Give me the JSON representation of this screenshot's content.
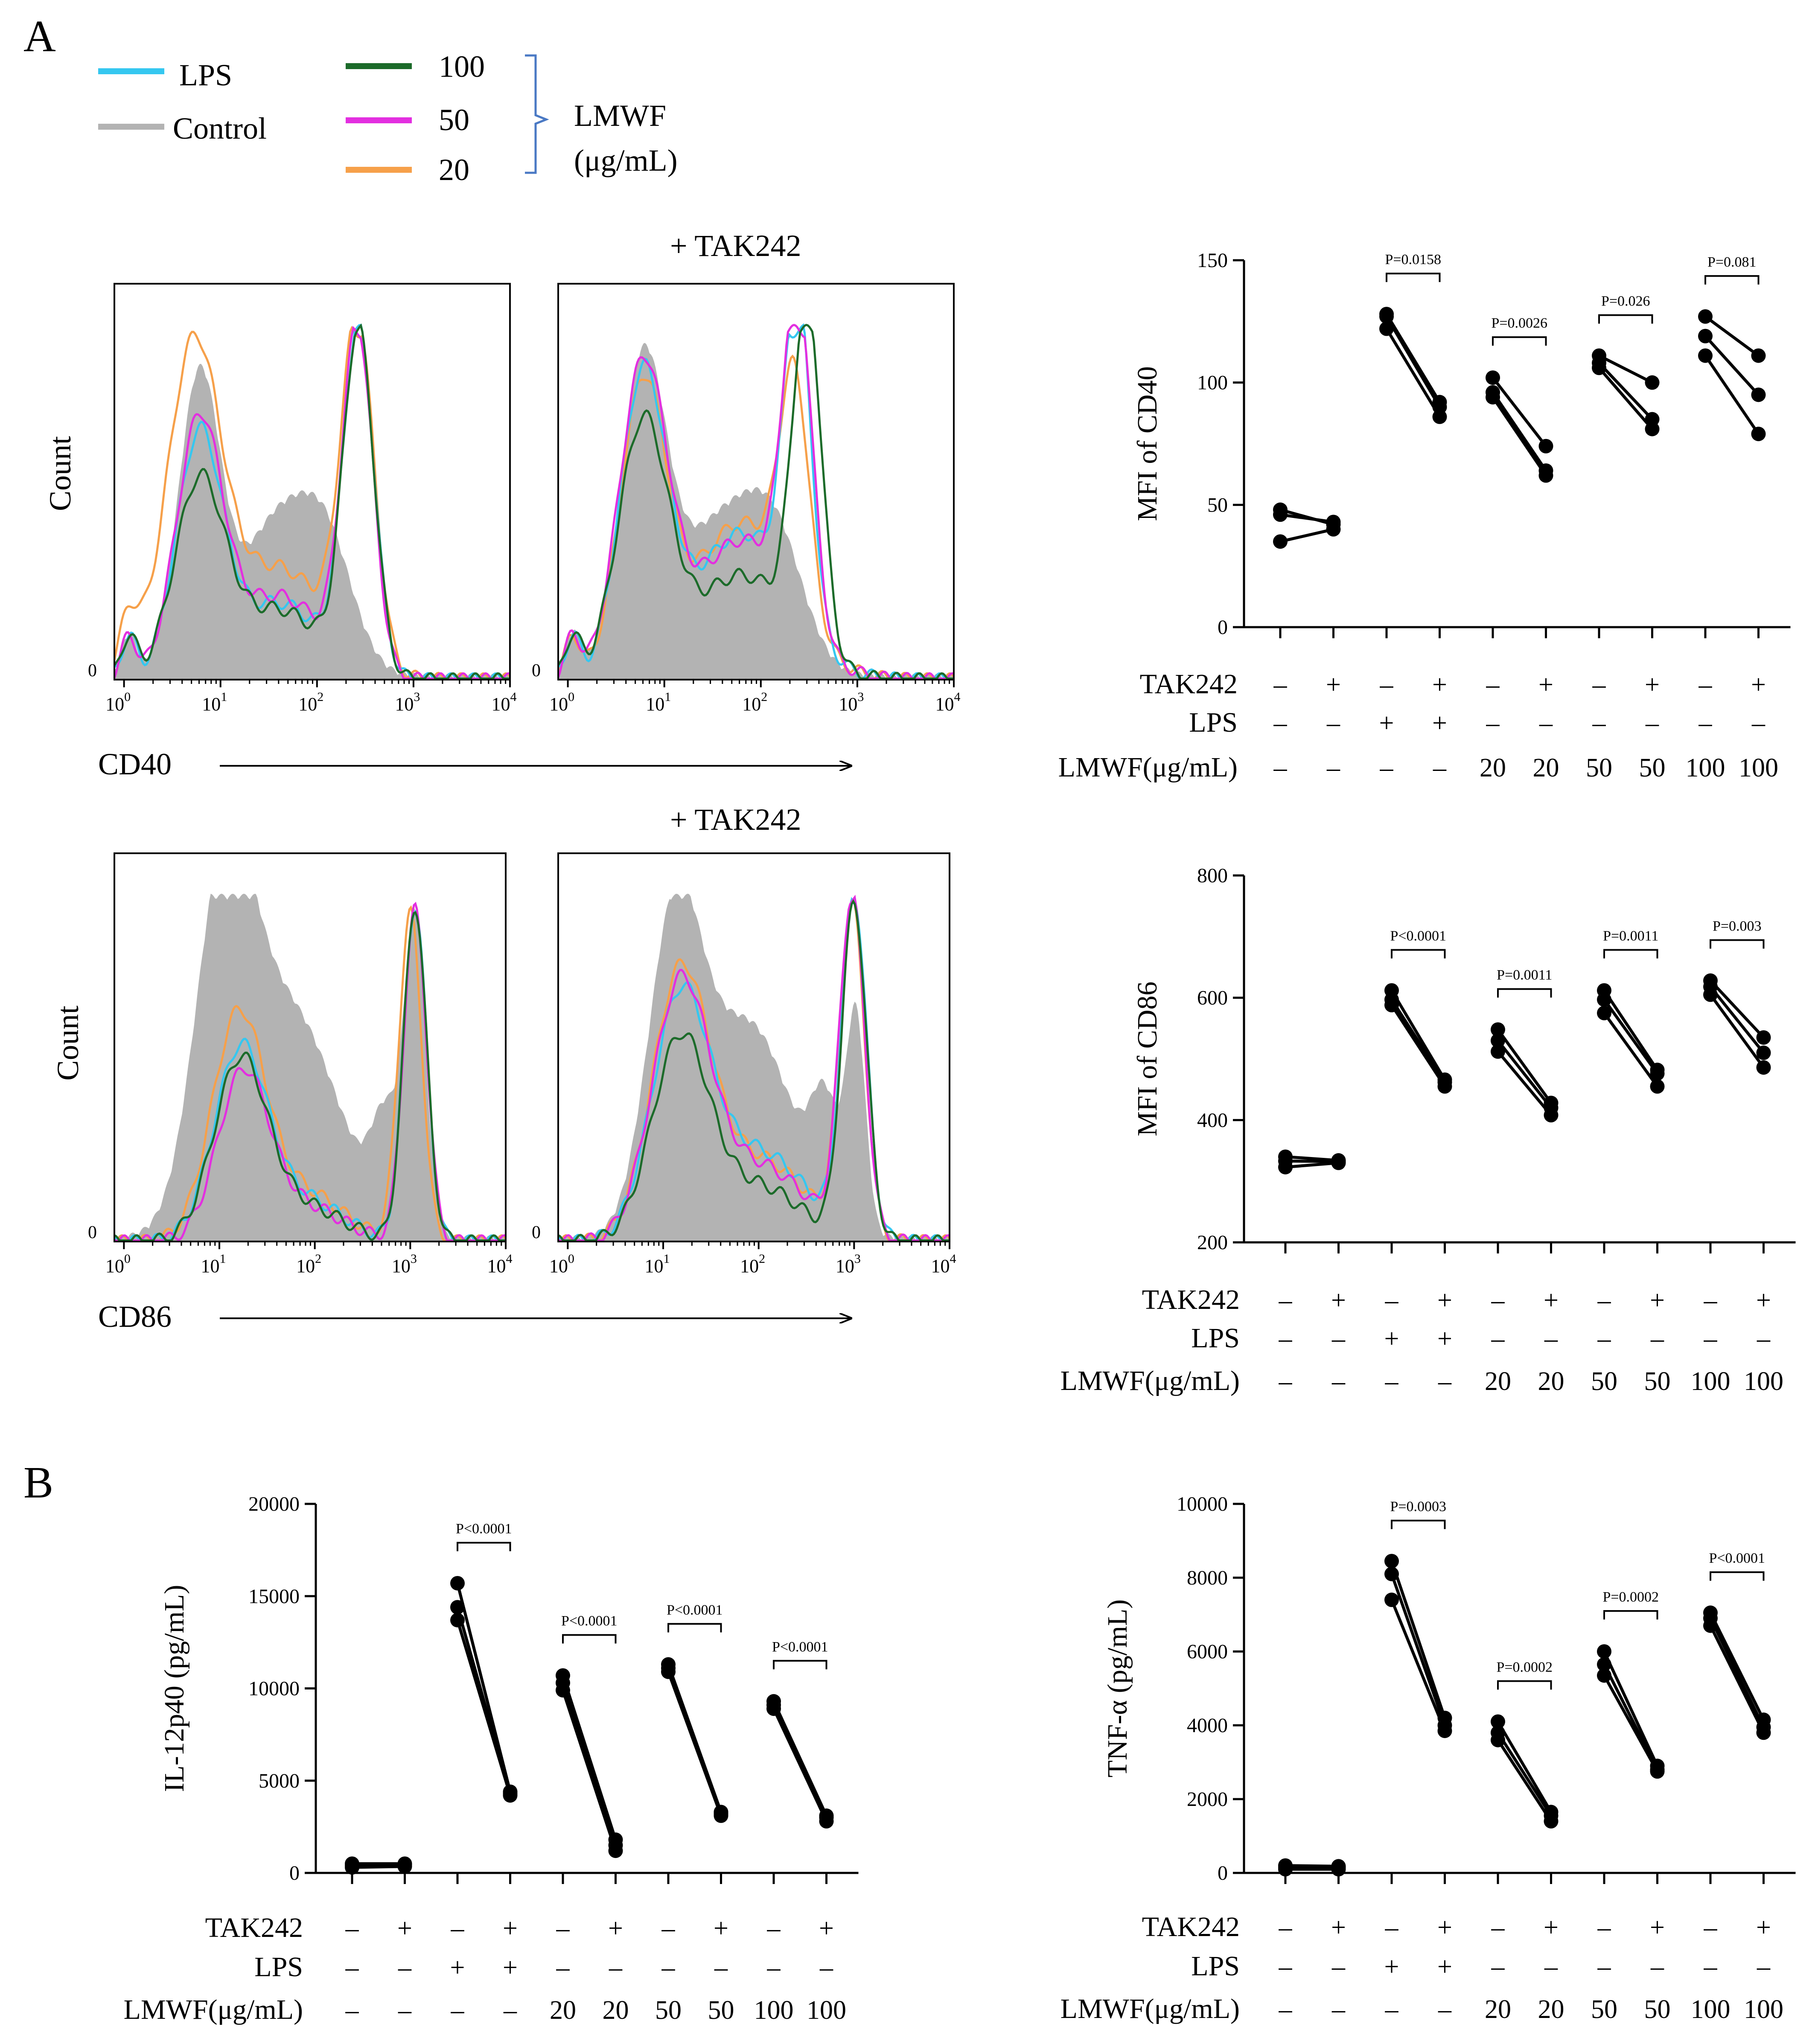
{
  "panel_labels": {
    "A": "A",
    "B": "B"
  },
  "legend": {
    "items": [
      {
        "label": "LPS",
        "color": "#35c7f0"
      },
      {
        "label": "Control",
        "color": "#b3b3b3"
      },
      {
        "label": "100",
        "color": "#1c6b2a"
      },
      {
        "label": "50",
        "color": "#e32fe0"
      },
      {
        "label": "20",
        "color": "#f6a04a"
      }
    ],
    "group_label_1": "LMWF",
    "group_label_2": "(μg/mL)"
  },
  "histograms": {
    "tak242_title": "+ TAK242",
    "count_label": "Count",
    "zero_label": "0",
    "tick_labels": [
      "10^0",
      "10^1",
      "10^2",
      "10^3",
      "10^4"
    ],
    "tick_mantissa": "10",
    "tick_exponents": [
      "0",
      "1",
      "2",
      "3",
      "4"
    ],
    "marker_cd40": "CD40",
    "marker_cd86": "CD86"
  },
  "conditions": {
    "row_labels": [
      "TAK242",
      "LPS",
      "LMWF(μg/mL)"
    ],
    "tak242": [
      "–",
      "+",
      "–",
      "+",
      "–",
      "+",
      "–",
      "+",
      "–",
      "+"
    ],
    "lps": [
      "–",
      "–",
      "+",
      "+",
      "–",
      "–",
      "–",
      "–",
      "–",
      "–"
    ],
    "lmwf": [
      "–",
      "–",
      "–",
      "–",
      "20",
      "20",
      "50",
      "50",
      "100",
      "100"
    ]
  },
  "chart_data": [
    {
      "type": "paired-scatter",
      "id": "cd40",
      "title": "",
      "ylabel": "MFI of CD40",
      "ylim": [
        0,
        150
      ],
      "yticks": [
        0,
        50,
        100,
        150
      ],
      "ytick_labels": [
        "0",
        "50",
        "100",
        "150"
      ],
      "pairs": [
        {
          "before": [
            35,
            46,
            48
          ],
          "after": [
            40,
            43,
            42
          ]
        },
        {
          "before": [
            122,
            127,
            128
          ],
          "after": [
            86,
            90,
            92
          ]
        },
        {
          "before": [
            94,
            96,
            102
          ],
          "after": [
            62,
            64,
            74
          ]
        },
        {
          "before": [
            106,
            108,
            111
          ],
          "after": [
            81,
            85,
            100
          ]
        },
        {
          "before": [
            111,
            119,
            127
          ],
          "after": [
            79,
            95,
            111
          ]
        }
      ],
      "p_values": [
        "",
        "P=0.0158",
        "P=0.0026",
        "P=0.026",
        "P=0.081"
      ]
    },
    {
      "type": "paired-scatter",
      "id": "cd86",
      "title": "",
      "ylabel": "MFI of CD86",
      "ylim": [
        200,
        800
      ],
      "yticks": [
        200,
        400,
        600,
        800
      ],
      "ytick_labels": [
        "200",
        "400",
        "600",
        "800"
      ],
      "pairs": [
        {
          "before": [
            323,
            333,
            340
          ],
          "after": [
            330,
            332,
            334
          ]
        },
        {
          "before": [
            588,
            597,
            612
          ],
          "after": [
            455,
            462,
            466
          ]
        },
        {
          "before": [
            512,
            530,
            548
          ],
          "after": [
            408,
            420,
            428
          ]
        },
        {
          "before": [
            575,
            597,
            612
          ],
          "after": [
            455,
            476,
            482
          ]
        },
        {
          "before": [
            605,
            618,
            628
          ],
          "after": [
            486,
            510,
            535
          ]
        }
      ],
      "p_values": [
        "",
        "P<0.0001",
        "P=0.0011",
        "P=0.0011",
        "P=0.003"
      ]
    },
    {
      "type": "paired-scatter",
      "id": "il12",
      "title": "",
      "ylabel": "IL-12p40 (pg/mL)",
      "ylim": [
        0,
        20000
      ],
      "yticks": [
        0,
        5000,
        10000,
        15000,
        20000
      ],
      "ytick_labels": [
        "0",
        "5000",
        "10000",
        "15000",
        "20000"
      ],
      "pairs": [
        {
          "before": [
            300,
            400,
            500
          ],
          "after": [
            350,
            450,
            500
          ]
        },
        {
          "before": [
            13700,
            14400,
            15700
          ],
          "after": [
            4200,
            4300,
            4400
          ]
        },
        {
          "before": [
            9900,
            10300,
            10700
          ],
          "after": [
            1200,
            1500,
            1800
          ]
        },
        {
          "before": [
            10900,
            11100,
            11300
          ],
          "after": [
            3100,
            3200,
            3300
          ]
        },
        {
          "before": [
            8900,
            9100,
            9300
          ],
          "after": [
            2800,
            3000,
            3100
          ]
        }
      ],
      "p_values": [
        "",
        "P<0.0001",
        "P<0.0001",
        "P<0.0001",
        "P<0.0001"
      ]
    },
    {
      "type": "paired-scatter",
      "id": "tnf",
      "title": "",
      "ylabel": "TNF-α (pg/mL)",
      "ylim": [
        0,
        10000
      ],
      "yticks": [
        0,
        2000,
        4000,
        6000,
        8000,
        10000
      ],
      "ytick_labels": [
        "0",
        "2000",
        "4000",
        "6000",
        "8000",
        "10000"
      ],
      "pairs": [
        {
          "before": [
            100,
            150,
            200
          ],
          "after": [
            100,
            150,
            180
          ]
        },
        {
          "before": [
            7400,
            8100,
            8450
          ],
          "after": [
            3850,
            4000,
            4200
          ]
        },
        {
          "before": [
            3600,
            3800,
            4100
          ],
          "after": [
            1400,
            1550,
            1650
          ]
        },
        {
          "before": [
            5350,
            5650,
            6000
          ],
          "after": [
            2750,
            2800,
            2900
          ]
        },
        {
          "before": [
            6700,
            6900,
            7050
          ],
          "after": [
            3800,
            3950,
            4150
          ]
        }
      ],
      "p_values": [
        "",
        "P=0.0003",
        "P=0.0002",
        "P=0.0002",
        "P<0.0001"
      ]
    }
  ]
}
